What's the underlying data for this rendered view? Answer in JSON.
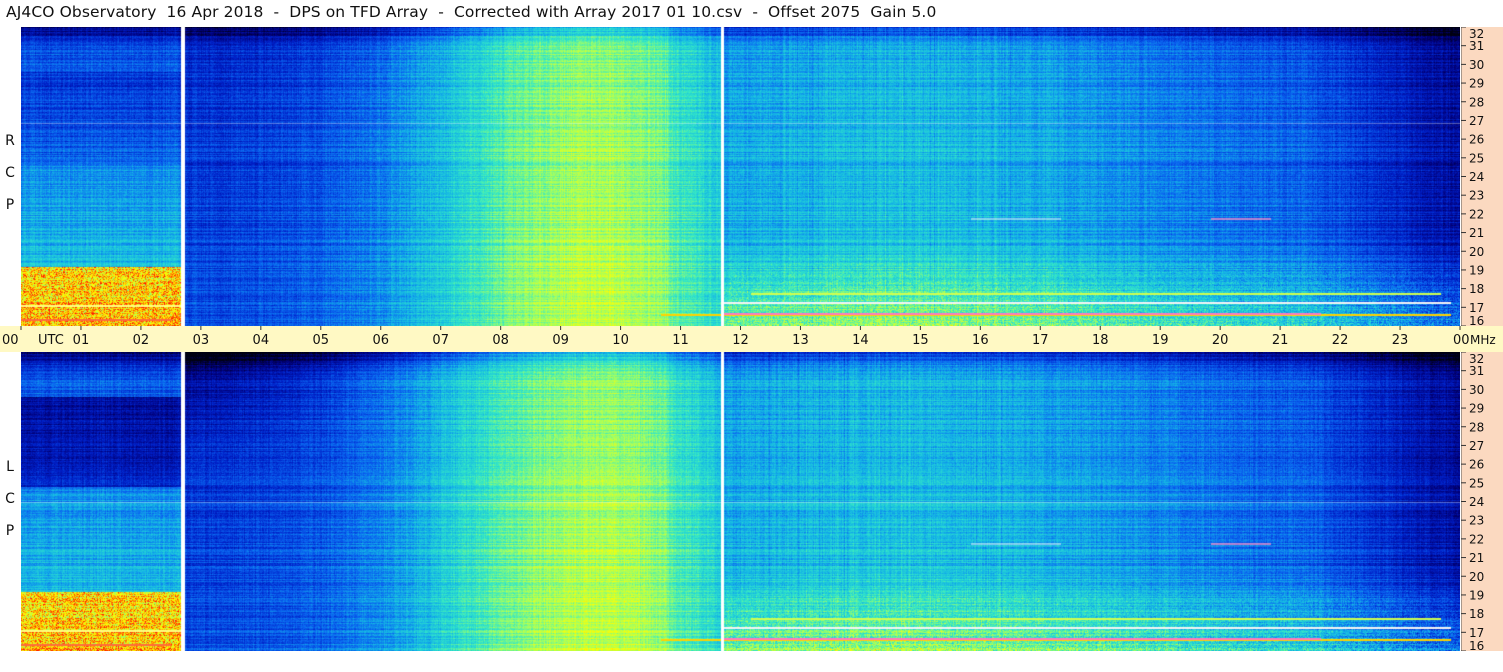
{
  "header": {
    "title": "AJ4CO Observatory  16 Apr 2018  -  DPS on TFD Array  -  Corrected with Array 2017 01 10.csv  -  Offset 2075  Gain 5.0"
  },
  "chart_data": [
    {
      "type": "heatmap",
      "panel": "top",
      "ylabel": "R C P",
      "x_ticks": [
        "00",
        "01",
        "02",
        "03",
        "04",
        "05",
        "06",
        "07",
        "08",
        "09",
        "10",
        "11",
        "12",
        "13",
        "14",
        "15",
        "16",
        "17",
        "18",
        "19",
        "20",
        "21",
        "22",
        "23",
        "00"
      ],
      "y_ticks": [
        16,
        17,
        18,
        19,
        20,
        21,
        22,
        23,
        24,
        25,
        26,
        27,
        28,
        29,
        30,
        31,
        32
      ],
      "xlim": [
        0,
        24
      ],
      "ylim": [
        16,
        32
      ],
      "gaps_utc": [
        2.67,
        11.62
      ],
      "colormap": [
        "#000010",
        "#00007a",
        "#0020c8",
        "#0a64f0",
        "#14b4e6",
        "#32e6c8",
        "#a0ff64",
        "#ffff00",
        "#ff8c00",
        "#ff0000",
        "#ffffff"
      ]
    },
    {
      "type": "heatmap",
      "panel": "bottom",
      "ylabel": "L C P",
      "x_ticks": [
        "00",
        "01",
        "02",
        "03",
        "04",
        "05",
        "06",
        "07",
        "08",
        "09",
        "10",
        "11",
        "12",
        "13",
        "14",
        "15",
        "16",
        "17",
        "18",
        "19",
        "20",
        "21",
        "22",
        "23",
        "00"
      ],
      "y_ticks": [
        16,
        17,
        18,
        19,
        20,
        21,
        22,
        23,
        24,
        25,
        26,
        27,
        28,
        29,
        30,
        31,
        32
      ],
      "xlim": [
        0,
        24
      ],
      "ylim": [
        16,
        32
      ],
      "gaps_utc": [
        2.67,
        11.62
      ]
    }
  ],
  "axis": {
    "time_label": "UTC",
    "freq_unit": "MHz"
  }
}
